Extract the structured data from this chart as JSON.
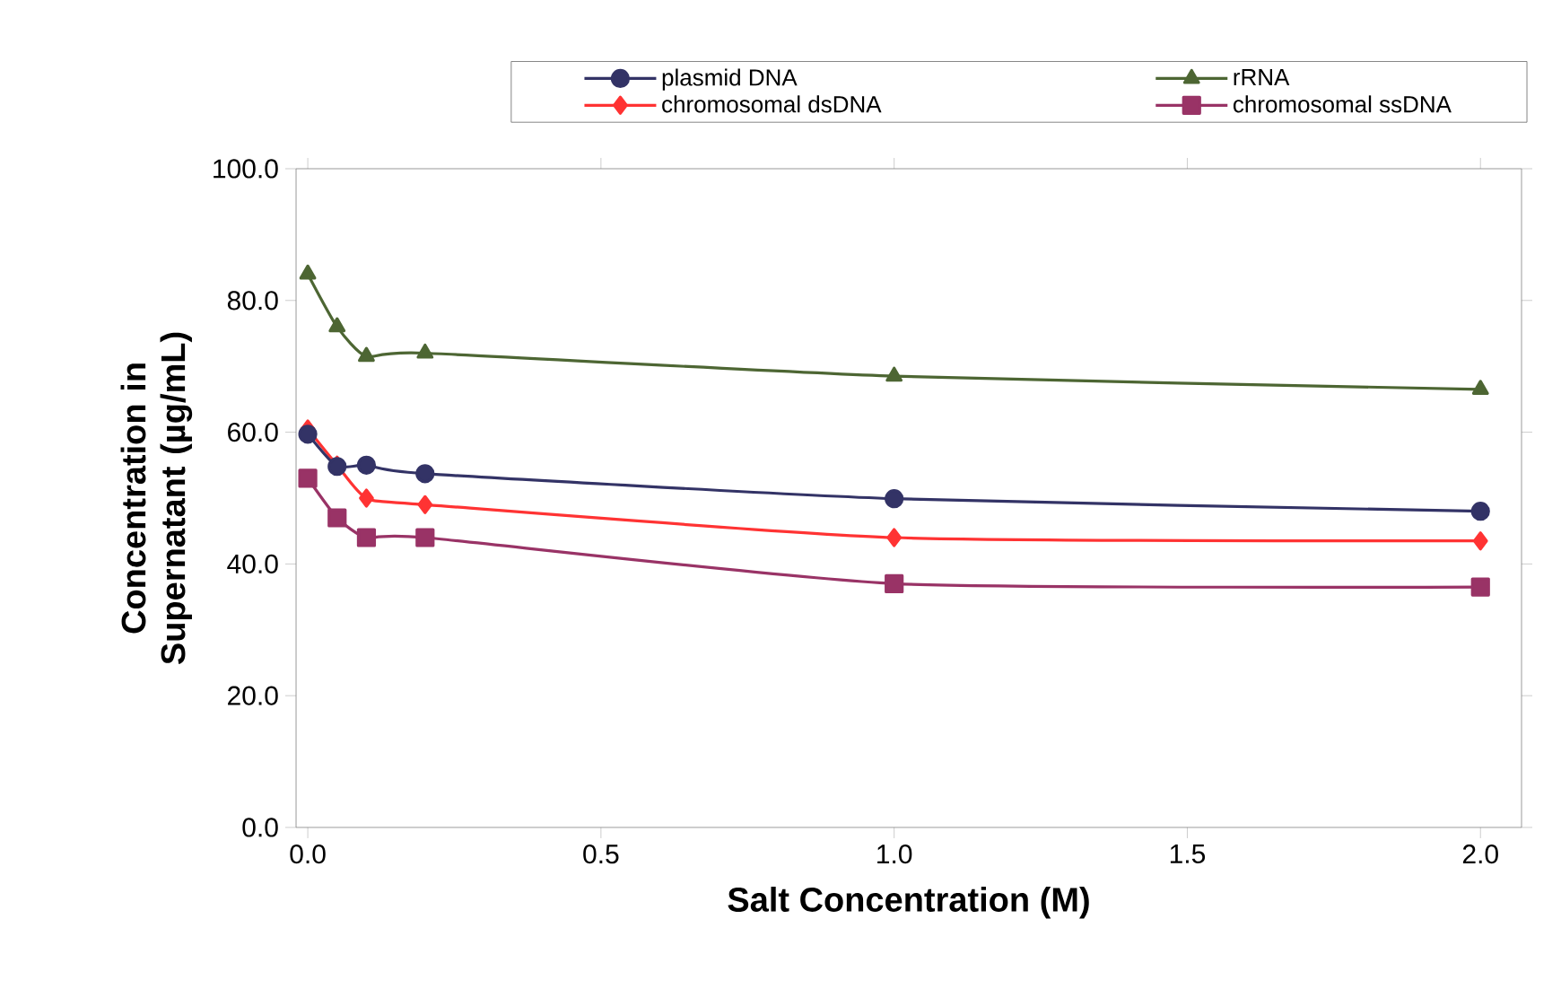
{
  "chart_data": {
    "type": "line",
    "xlabel": "Salt Concentration (M)",
    "ylabel": "Concentration in Supernatant (µg/mL)",
    "x": [
      0,
      0.05,
      0.1,
      0.2,
      1.0,
      2.0
    ],
    "series": [
      {
        "name": "plasmid DNA",
        "color": "#333366",
        "marker": "circle",
        "values": [
          59.7,
          54.8,
          55.0,
          53.7,
          49.9,
          48.0
        ]
      },
      {
        "name": "rRNA",
        "color": "#4d6633",
        "marker": "triangle",
        "values": [
          84.0,
          76.0,
          71.5,
          72.0,
          68.5,
          66.5
        ]
      },
      {
        "name": "chromosomal dsDNA",
        "color": "#ff3333",
        "marker": "diamond",
        "values": [
          60.5,
          55.0,
          50.0,
          49.0,
          44.0,
          43.5
        ]
      },
      {
        "name": "chromosomal ssDNA",
        "color": "#993366",
        "marker": "square",
        "values": [
          53.0,
          47.0,
          44.0,
          44.0,
          37.0,
          36.5
        ]
      }
    ],
    "xlim": [
      -0.02,
      2.07
    ],
    "xticks": [
      {
        "value": 0,
        "label": "0.0"
      },
      {
        "value": 0.5,
        "label": "0.5"
      },
      {
        "value": 1.0,
        "label": "1.0"
      },
      {
        "value": 1.5,
        "label": "1.5"
      },
      {
        "value": 2.0,
        "label": "2.0"
      }
    ],
    "ylim": [
      0,
      100
    ],
    "yticks": [
      {
        "value": 0,
        "label": "0.0"
      },
      {
        "value": 20,
        "label": "20.0"
      },
      {
        "value": 40,
        "label": "40.0"
      },
      {
        "value": 60,
        "label": "60.0"
      },
      {
        "value": 80,
        "label": "80.0"
      },
      {
        "value": 100,
        "label": "100.0"
      }
    ],
    "grid": false,
    "legend": "top",
    "line_style": "solid"
  }
}
